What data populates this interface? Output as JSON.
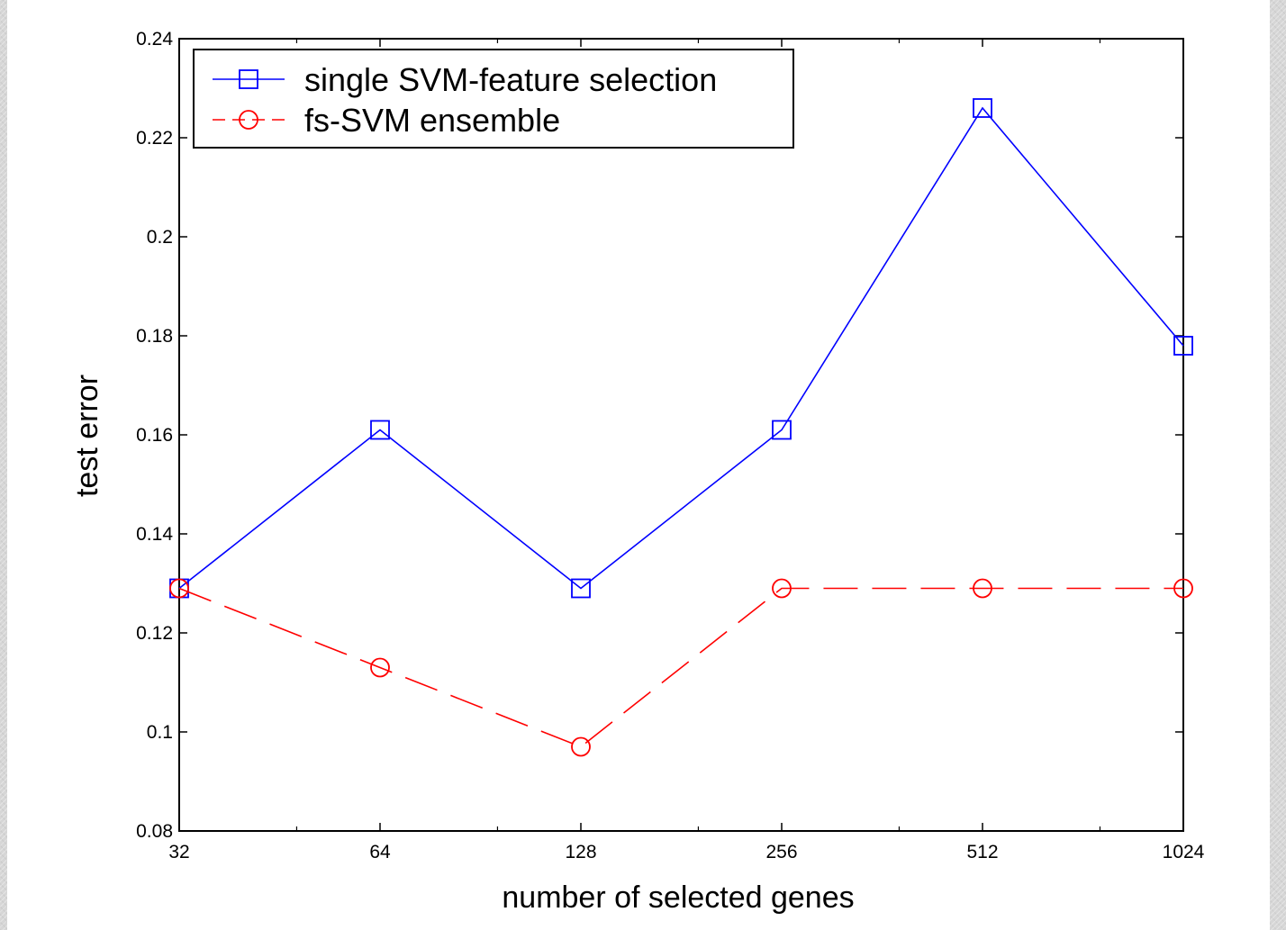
{
  "chart_data": {
    "type": "line",
    "title": "",
    "xlabel": "number of selected genes",
    "ylabel": "test error",
    "x_scale": "log2",
    "x": [
      32,
      64,
      128,
      256,
      512,
      1024
    ],
    "x_tick_labels": [
      "32",
      "64",
      "128",
      "256",
      "512",
      "1024"
    ],
    "ylim": [
      0.08,
      0.24
    ],
    "y_ticks": [
      0.08,
      0.1,
      0.12,
      0.14,
      0.16,
      0.18,
      0.2,
      0.22,
      0.24
    ],
    "y_tick_labels": [
      "0.08",
      "0.1",
      "0.12",
      "0.14",
      "0.16",
      "0.18",
      "0.2",
      "0.22",
      "0.24"
    ],
    "grid": false,
    "legend_position": "top-left",
    "series": [
      {
        "name": "single SVM-feature selection",
        "color": "#0000ff",
        "marker": "square",
        "line_style": "solid",
        "values": [
          0.129,
          0.161,
          0.129,
          0.161,
          0.226,
          0.178
        ]
      },
      {
        "name": "fs-SVM ensemble",
        "color": "#ff0000",
        "marker": "circle",
        "line_style": "dashed",
        "values": [
          0.129,
          0.113,
          0.097,
          0.129,
          0.129,
          0.129
        ]
      }
    ]
  }
}
